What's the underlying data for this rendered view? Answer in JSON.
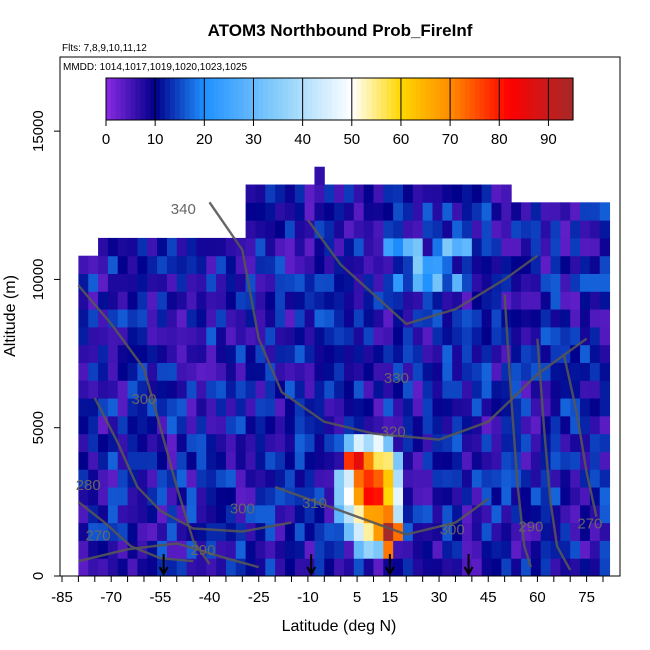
{
  "chart_data": {
    "type": "heatmap",
    "title": "ATOM3 Northbound Prob_FireInf",
    "flights_note": "Flts: 7,8,9,10,11,12",
    "dates_note": "MMDD: 1014,1017,1019,1020,1023,1025",
    "xlabel": "Latitude (deg N)",
    "ylabel": "Altitude (m)",
    "xlim": [
      -85,
      80
    ],
    "ylim": [
      0,
      17500
    ],
    "x_ticks": [
      -85,
      -70,
      -55,
      -40,
      -25,
      -10,
      5,
      15,
      30,
      45,
      60,
      75
    ],
    "y_ticks": [
      0,
      5000,
      10000,
      15000
    ],
    "colorbar": {
      "range": [
        0,
        95
      ],
      "ticks": [
        0,
        10,
        20,
        30,
        40,
        50,
        60,
        70,
        80,
        90
      ],
      "colors": [
        "#8a2be2",
        "#00008b",
        "#1e90ff",
        "#87cefa",
        "#ffffff",
        "#ffd700",
        "#ff8c00",
        "#ff0000",
        "#a52a2a"
      ]
    },
    "contour_labels": [
      {
        "text": "340",
        "lat": -48,
        "alt": 12200
      },
      {
        "text": "330",
        "lat": 17,
        "alt": 6500
      },
      {
        "text": "320",
        "lat": 16,
        "alt": 4700
      },
      {
        "text": "310",
        "lat": -8,
        "alt": 2300
      },
      {
        "text": "300",
        "lat": -60,
        "alt": 5800
      },
      {
        "text": "300",
        "lat": -30,
        "alt": 2100
      },
      {
        "text": "300",
        "lat": 34,
        "alt": 1400
      },
      {
        "text": "290",
        "lat": -42,
        "alt": 700
      },
      {
        "text": "290",
        "lat": 58,
        "alt": 1500
      },
      {
        "text": "280",
        "lat": -77,
        "alt": 2900
      },
      {
        "text": "270",
        "lat": -74,
        "alt": 1200
      },
      {
        "text": "270",
        "lat": 76,
        "alt": 1600
      }
    ],
    "arrows_lat": [
      -54,
      -9,
      15,
      39
    ]
  }
}
